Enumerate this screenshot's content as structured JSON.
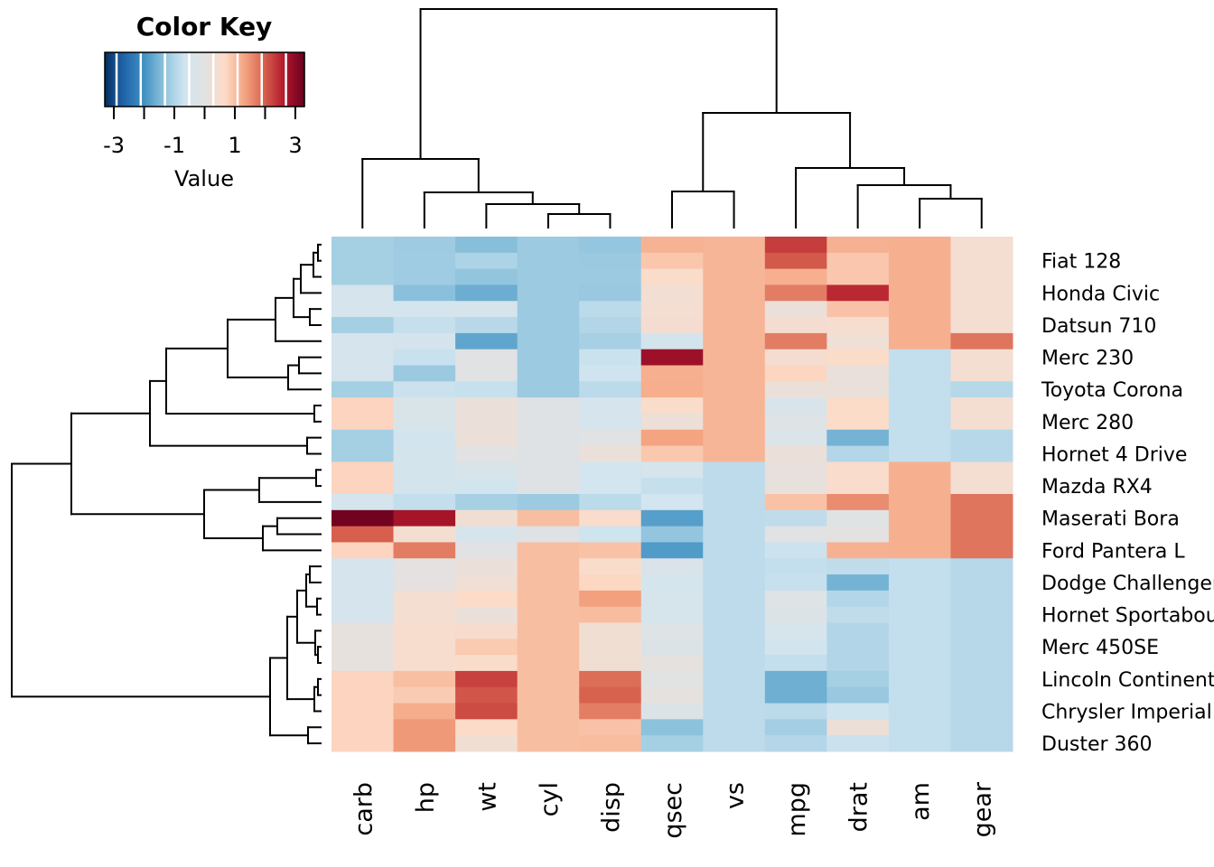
{
  "chart_data": {
    "type": "heatmap",
    "title": "",
    "color_key": {
      "title": "Color Key",
      "label": "Value",
      "ticks": [
        -3,
        -1,
        1,
        3
      ],
      "range": [
        -3.3,
        3.3
      ],
      "colors": [
        "#053061",
        "#2166AC",
        "#4393C3",
        "#92C5DE",
        "#D1E5F0",
        "#E2E2E2",
        "#FDDBC7",
        "#F4A582",
        "#D6604D",
        "#B2182B",
        "#67001F"
      ]
    },
    "columns": [
      "carb",
      "hp",
      "wt",
      "cyl",
      "disp",
      "qsec",
      "vs",
      "mpg",
      "drat",
      "am",
      "gear"
    ],
    "row_labels": [
      "",
      "Fiat 128",
      "",
      "Honda Civic",
      "",
      "Datsun 710",
      "",
      "Merc 230",
      "",
      "Toyota Corona",
      "",
      "Merc 280",
      "",
      "Hornet 4 Drive",
      "",
      "Mazda RX4",
      "",
      "Maserati Bora",
      "",
      "Ford Pantera L",
      "",
      "Dodge Challenger",
      "",
      "Hornet Sportabout",
      "",
      "Merc 450SE",
      "",
      "Lincoln Continental",
      "",
      "Chrysler Imperial",
      "",
      "Duster 360"
    ],
    "values": [
      [
        -1.12,
        -1.19,
        -1.41,
        -1.22,
        -1.29,
        1.15,
        1.12,
        2.29,
        1.17,
        1.19,
        0.42
      ],
      [
        -1.12,
        -1.18,
        -1.04,
        -1.22,
        -1.23,
        0.91,
        1.12,
        2.04,
        0.9,
        1.19,
        0.42
      ],
      [
        -1.12,
        -1.18,
        -1.31,
        -1.22,
        -1.22,
        0.59,
        1.12,
        1.2,
        0.9,
        1.19,
        0.42
      ],
      [
        -0.5,
        -1.38,
        -1.64,
        -1.22,
        -1.25,
        0.38,
        1.12,
        1.71,
        2.49,
        1.19,
        0.42
      ],
      [
        -0.5,
        -0.55,
        -0.45,
        -1.22,
        -0.89,
        0.42,
        1.12,
        0.22,
        0.96,
        1.19,
        0.42
      ],
      [
        -1.12,
        -0.78,
        -0.92,
        -1.22,
        -0.99,
        0.43,
        1.12,
        0.45,
        0.47,
        1.19,
        0.42
      ],
      [
        -0.5,
        -0.49,
        -1.74,
        -1.22,
        -1.09,
        -0.53,
        1.12,
        1.71,
        0.32,
        1.19,
        1.78
      ],
      [
        -0.5,
        -0.75,
        -0.07,
        -1.22,
        -0.73,
        2.83,
        1.12,
        0.45,
        0.6,
        -0.81,
        0.42
      ],
      [
        -0.5,
        -1.23,
        -0.03,
        -1.22,
        -0.68,
        1.2,
        1.12,
        0.72,
        0.17,
        -0.81,
        0.42
      ],
      [
        -1.12,
        -0.72,
        -0.77,
        -1.22,
        -0.89,
        1.21,
        1.12,
        0.23,
        0.19,
        -0.81,
        -0.93
      ],
      [
        0.74,
        -0.35,
        0.23,
        -0.1,
        -0.51,
        0.59,
        1.12,
        -0.38,
        0.6,
        -0.81,
        0.42
      ],
      [
        0.74,
        -0.35,
        0.23,
        -0.1,
        -0.51,
        0.25,
        1.12,
        -0.15,
        0.6,
        -0.81,
        0.42
      ],
      [
        -1.12,
        -0.61,
        0.25,
        -0.1,
        -0.05,
        1.33,
        1.12,
        -0.33,
        -1.56,
        -0.81,
        -0.93
      ],
      [
        -1.12,
        -0.54,
        0.0,
        -0.1,
        0.22,
        0.89,
        1.12,
        0.22,
        -0.97,
        -0.81,
        -0.93
      ],
      [
        0.74,
        -0.54,
        -0.35,
        -0.1,
        -0.57,
        -0.46,
        -0.87,
        0.15,
        0.57,
        1.19,
        0.42
      ],
      [
        0.74,
        -0.54,
        -0.61,
        -0.1,
        -0.57,
        -0.78,
        -0.87,
        0.15,
        0.57,
        1.19,
        0.42
      ],
      [
        -0.5,
        -0.81,
        -1.1,
        -1.22,
        -0.89,
        -0.64,
        -0.87,
        0.98,
        1.56,
        1.19,
        1.78
      ],
      [
        3.21,
        2.75,
        0.36,
        1.01,
        0.57,
        -1.82,
        -0.87,
        -0.84,
        -0.11,
        1.19,
        1.78
      ],
      [
        1.98,
        0.41,
        -0.46,
        -0.1,
        -0.69,
        -1.31,
        -0.87,
        -0.06,
        0.04,
        1.19,
        1.78
      ],
      [
        0.74,
        1.71,
        -0.05,
        1.01,
        0.97,
        -1.87,
        -0.87,
        -0.71,
        1.17,
        1.19,
        1.78
      ],
      [
        -0.5,
        0.05,
        0.22,
        1.01,
        0.59,
        -0.31,
        -0.87,
        -0.81,
        -0.84,
        -0.81,
        -0.93
      ],
      [
        -0.5,
        0.05,
        0.31,
        1.01,
        0.7,
        -0.55,
        -0.87,
        -0.76,
        -1.56,
        -0.81,
        -0.93
      ],
      [
        -0.5,
        0.41,
        0.64,
        1.01,
        1.37,
        -0.45,
        -0.87,
        -0.15,
        -0.97,
        -0.81,
        -0.93
      ],
      [
        -0.5,
        0.41,
        0.23,
        1.01,
        1.04,
        -0.46,
        -0.87,
        -0.23,
        -0.84,
        -0.81,
        -0.93
      ],
      [
        0.12,
        0.49,
        0.52,
        1.01,
        0.36,
        -0.14,
        -0.87,
        -0.46,
        -0.99,
        -0.81,
        -0.93
      ],
      [
        0.12,
        0.49,
        0.87,
        1.01,
        0.36,
        -0.25,
        -0.87,
        -0.61,
        -0.99,
        -0.81,
        -0.93
      ],
      [
        0.12,
        0.49,
        0.58,
        1.01,
        0.36,
        0.08,
        -0.87,
        -0.81,
        -0.99,
        -0.81,
        -0.93
      ],
      [
        0.74,
        1.0,
        2.26,
        1.01,
        1.85,
        -0.02,
        -0.87,
        -1.61,
        -1.12,
        -0.81,
        -0.93
      ],
      [
        0.74,
        0.85,
        2.08,
        1.01,
        1.95,
        0.07,
        -0.87,
        -1.61,
        -1.25,
        -0.81,
        -0.93
      ],
      [
        0.74,
        1.22,
        2.17,
        1.01,
        1.69,
        -0.24,
        -0.87,
        -0.89,
        -0.69,
        -0.81,
        -0.93
      ],
      [
        0.74,
        1.43,
        0.64,
        1.01,
        0.96,
        -1.36,
        -0.87,
        -1.13,
        0.25,
        -0.81,
        -0.93
      ],
      [
        0.74,
        1.43,
        0.36,
        1.01,
        1.04,
        -1.12,
        -0.87,
        -0.96,
        -0.72,
        -0.81,
        -0.93
      ]
    ],
    "row_dendrogram": true,
    "column_dendrogram": true
  }
}
